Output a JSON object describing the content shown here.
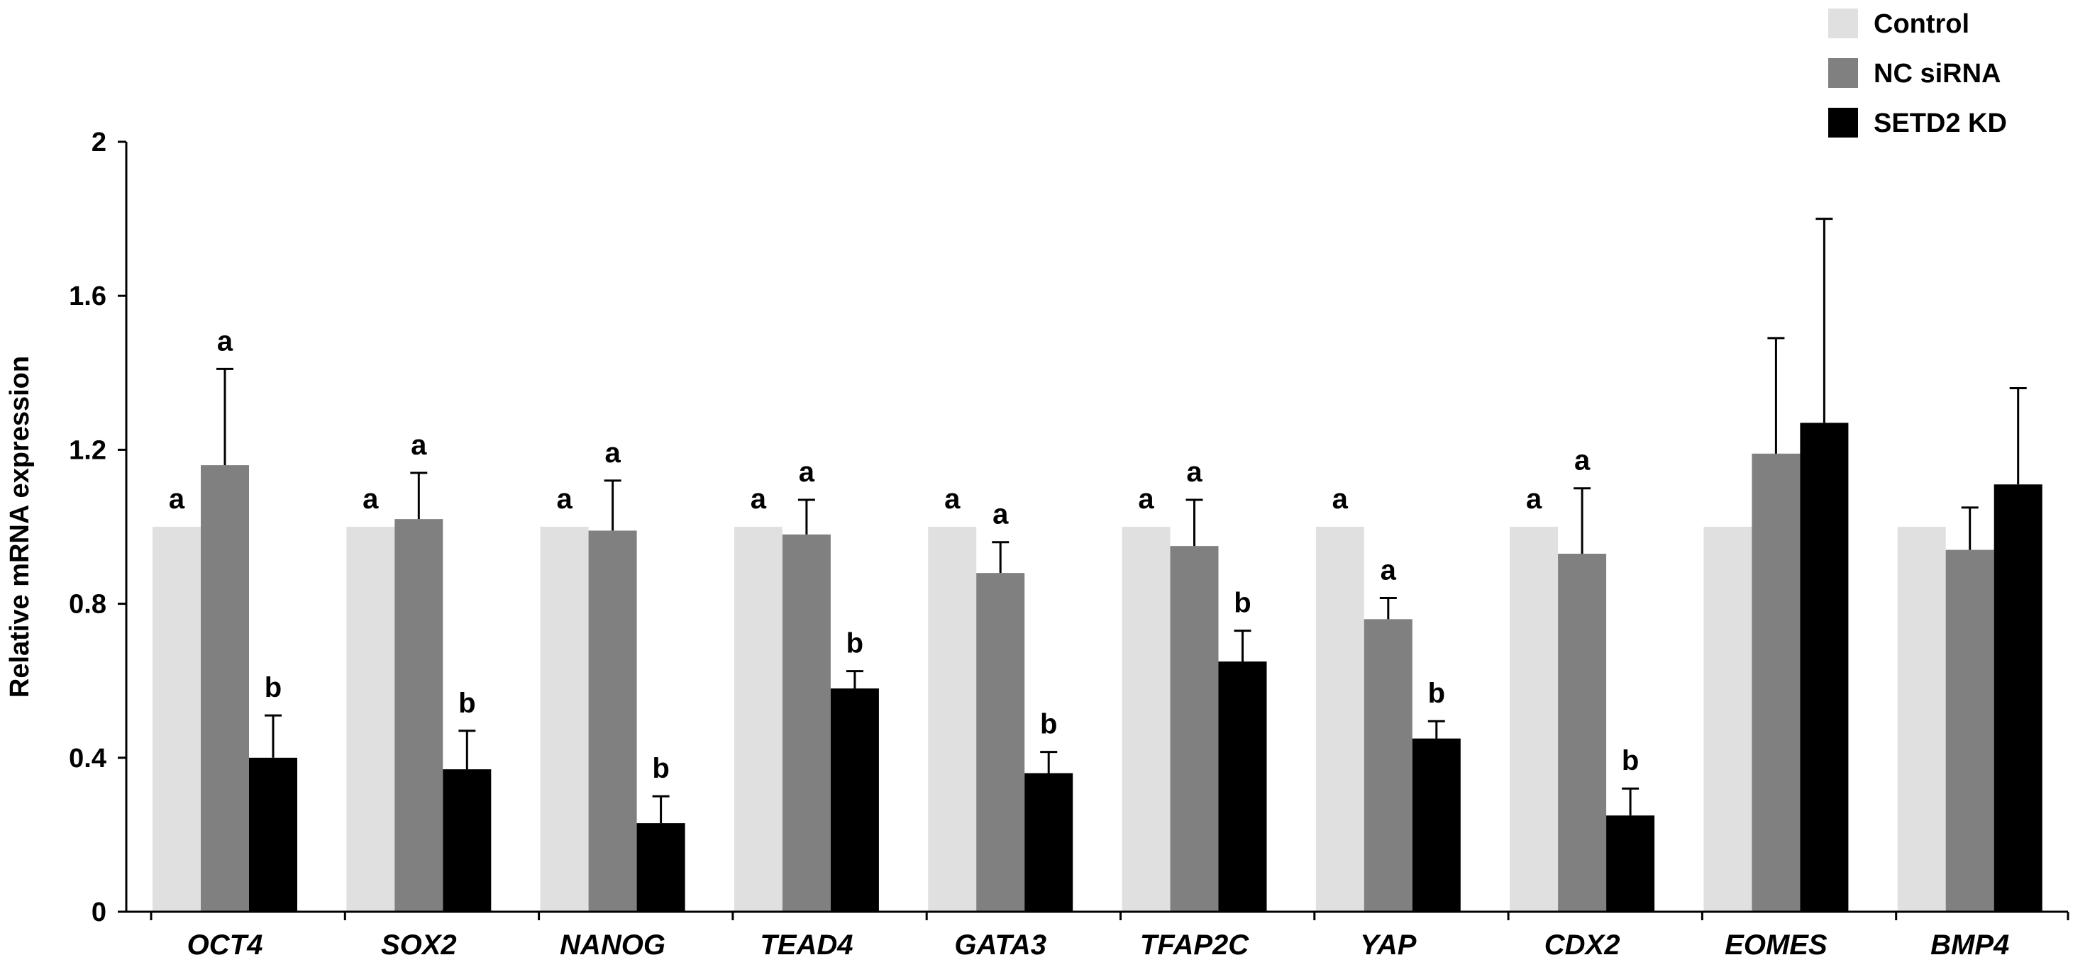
{
  "chart_data": {
    "type": "bar",
    "title": "",
    "xlabel": "",
    "ylabel": "Relative mRNA expression",
    "ylim": [
      0,
      2
    ],
    "yticks": [
      0,
      0.4,
      0.8,
      1.2,
      1.6,
      2
    ],
    "ytick_labels": [
      "0",
      "0.4",
      "0.8",
      "1.2",
      "1.6",
      "2"
    ],
    "grid": false,
    "legend_position": "top-right",
    "categories": [
      "OCT4",
      "SOX2",
      "NANOG",
      "TEAD4",
      "GATA3",
      "TFAP2C",
      "YAP",
      "CDX2",
      "EOMES",
      "BMP4"
    ],
    "series": [
      {
        "name": "Control",
        "color": "#e0e0e0",
        "values": [
          1.0,
          1.0,
          1.0,
          1.0,
          1.0,
          1.0,
          1.0,
          1.0,
          1.0,
          1.0
        ],
        "errors": [
          0,
          0,
          0,
          0,
          0,
          0,
          0,
          0,
          0,
          0
        ],
        "labels": [
          "a",
          "a",
          "a",
          "a",
          "a",
          "a",
          "a",
          "a",
          "",
          ""
        ]
      },
      {
        "name": "NC siRNA",
        "color": "#808080",
        "values": [
          1.16,
          1.02,
          0.99,
          0.98,
          0.88,
          0.95,
          0.76,
          0.93,
          1.19,
          0.94
        ],
        "errors": [
          0.25,
          0.12,
          0.13,
          0.09,
          0.08,
          0.12,
          0.055,
          0.17,
          0.3,
          0.11
        ],
        "labels": [
          "a",
          "a",
          "a",
          "a",
          "a",
          "a",
          "a",
          "a",
          "",
          ""
        ]
      },
      {
        "name": "SETD2 KD",
        "color": "#000000",
        "values": [
          0.4,
          0.37,
          0.23,
          0.58,
          0.36,
          0.65,
          0.45,
          0.25,
          1.27,
          1.11
        ],
        "errors": [
          0.11,
          0.1,
          0.07,
          0.045,
          0.055,
          0.08,
          0.045,
          0.07,
          0.53,
          0.25
        ],
        "labels": [
          "b",
          "b",
          "b",
          "b",
          "b",
          "b",
          "b",
          "b",
          "",
          ""
        ]
      }
    ]
  }
}
